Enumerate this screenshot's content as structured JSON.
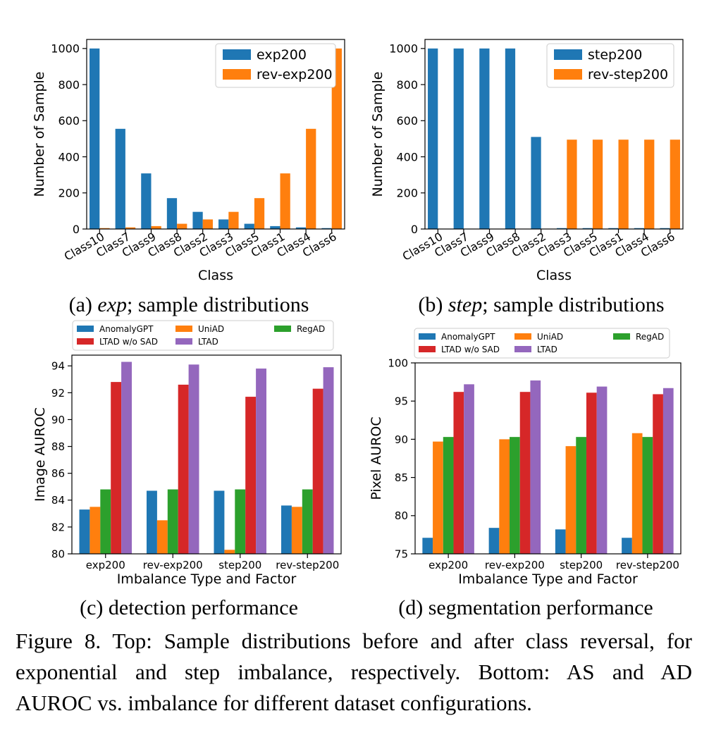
{
  "colors": {
    "c1": "#1f77b4",
    "c2": "#ff7f0e",
    "c3": "#2ca02c",
    "c4": "#d62728",
    "c5": "#9467bd"
  },
  "subcaptions": {
    "a_prefix": "(a)",
    "a_italic": "exp",
    "a_suffix": "; sample distributions",
    "b_prefix": "(b)",
    "b_italic": "step",
    "b_suffix": "; sample distributions",
    "c": "(c) detection performance",
    "d": "(d) segmentation performance"
  },
  "caption": {
    "line1": "Figure 8. Top: Sample distributions before and after class reversal, for",
    "line2": "exponential and step imbalance, respectively. Bottom: AS and AD",
    "line3": "AUROC vs. imbalance for different dataset configurations."
  },
  "chart_data": [
    {
      "type": "bar",
      "title": "",
      "xlabel": "Class",
      "ylabel": "Number of Sample",
      "ylim": [
        0,
        1050
      ],
      "yticks": [
        0,
        200,
        400,
        600,
        800,
        1000
      ],
      "grid": false,
      "legend_position": "top-right",
      "categories": [
        "Class10",
        "Class7",
        "Class9",
        "Class8",
        "Class2",
        "Class3",
        "Class5",
        "Class1",
        "Class4",
        "Class6"
      ],
      "series": [
        {
          "name": "exp200",
          "color": "#1f77b4",
          "values": [
            1000,
            555,
            308,
            171,
            95,
            53,
            29,
            16,
            9,
            5
          ]
        },
        {
          "name": "rev-exp200",
          "color": "#ff7f0e",
          "values": [
            5,
            9,
            16,
            29,
            53,
            95,
            171,
            308,
            555,
            1000
          ]
        }
      ]
    },
    {
      "type": "bar",
      "title": "",
      "xlabel": "Class",
      "ylabel": "Number of Sample",
      "ylim": [
        0,
        1050
      ],
      "yticks": [
        0,
        200,
        400,
        600,
        800,
        1000
      ],
      "grid": false,
      "legend_position": "top-right",
      "categories": [
        "Class10",
        "Class7",
        "Class9",
        "Class8",
        "Class2",
        "Class3",
        "Class5",
        "Class1",
        "Class4",
        "Class6"
      ],
      "series": [
        {
          "name": "step200",
          "color": "#1f77b4",
          "values": [
            1000,
            1000,
            1000,
            1000,
            510,
            5,
            5,
            5,
            5,
            5
          ]
        },
        {
          "name": "rev-step200",
          "color": "#ff7f0e",
          "values": [
            0,
            0,
            0,
            0,
            0,
            495,
            495,
            495,
            495,
            495
          ]
        }
      ]
    },
    {
      "type": "bar",
      "title": "",
      "xlabel": "Imbalance Type and Factor",
      "ylabel": "Image AUROC",
      "ylim": [
        80,
        94.8
      ],
      "yticks": [
        80,
        82,
        84,
        86,
        88,
        90,
        92,
        94
      ],
      "grid": false,
      "legend_position": "top (above plot)",
      "categories": [
        "exp200",
        "rev-exp200",
        "step200",
        "rev-step200"
      ],
      "series": [
        {
          "name": "AnomalyGPT",
          "color": "#1f77b4",
          "values": [
            83.3,
            84.7,
            84.7,
            83.6
          ]
        },
        {
          "name": "UniAD",
          "color": "#ff7f0e",
          "values": [
            83.5,
            82.5,
            80.3,
            83.5
          ]
        },
        {
          "name": "RegAD",
          "color": "#2ca02c",
          "values": [
            84.8,
            84.8,
            84.8,
            84.8
          ]
        },
        {
          "name": "LTAD w/o SAD",
          "color": "#d62728",
          "values": [
            92.8,
            92.6,
            91.7,
            92.3
          ]
        },
        {
          "name": "LTAD",
          "color": "#9467bd",
          "values": [
            94.3,
            94.1,
            93.8,
            93.9
          ]
        }
      ]
    },
    {
      "type": "bar",
      "title": "",
      "xlabel": "Imbalance Type and Factor",
      "ylabel": "Pixel AUROC",
      "ylim": [
        75,
        100
      ],
      "yticks": [
        75,
        80,
        85,
        90,
        95,
        100
      ],
      "grid": false,
      "legend_position": "top (above plot)",
      "categories": [
        "exp200",
        "rev-exp200",
        "step200",
        "rev-step200"
      ],
      "series": [
        {
          "name": "AnomalyGPT",
          "color": "#1f77b4",
          "values": [
            77.1,
            78.4,
            78.2,
            77.1
          ]
        },
        {
          "name": "UniAD",
          "color": "#ff7f0e",
          "values": [
            89.7,
            90.0,
            89.1,
            90.8
          ]
        },
        {
          "name": "RegAD",
          "color": "#2ca02c",
          "values": [
            90.3,
            90.3,
            90.3,
            90.3
          ]
        },
        {
          "name": "LTAD w/o SAD",
          "color": "#d62728",
          "values": [
            96.2,
            96.2,
            96.1,
            95.9
          ]
        },
        {
          "name": "LTAD",
          "color": "#9467bd",
          "values": [
            97.2,
            97.7,
            96.9,
            96.7
          ]
        }
      ]
    }
  ]
}
